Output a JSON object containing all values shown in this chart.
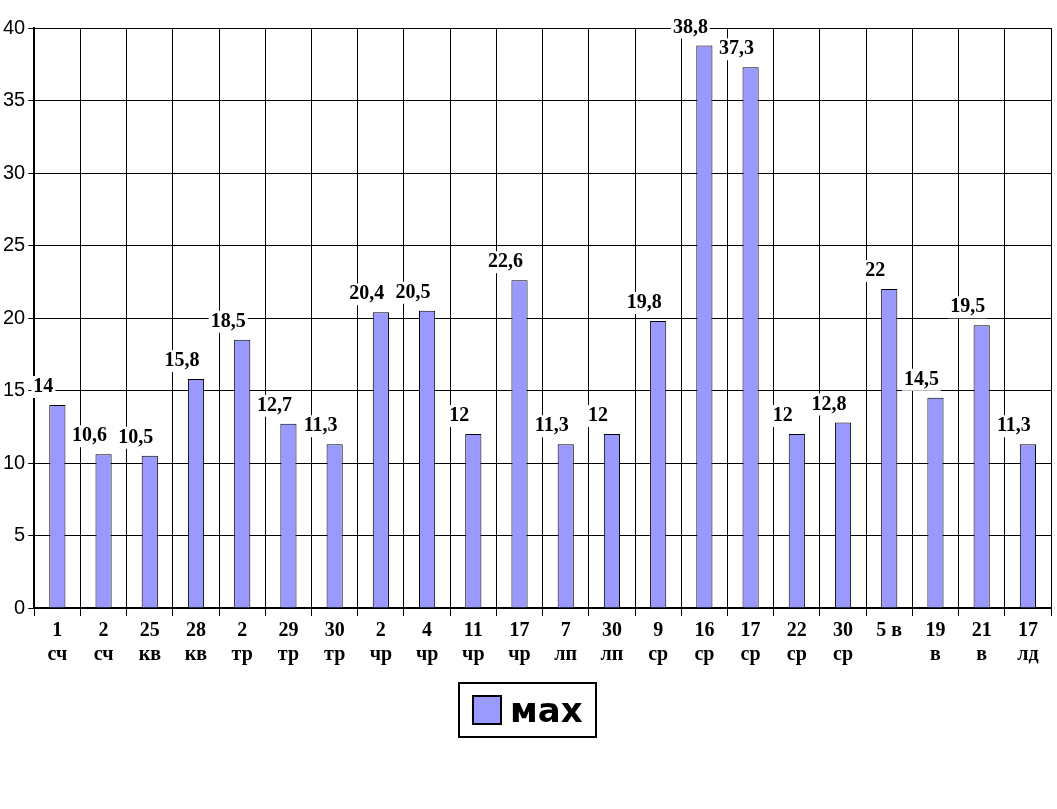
{
  "chart_data": {
    "type": "bar",
    "categories": [
      "1\nсч",
      "2\nсч",
      "25\nкв",
      "28\nкв",
      "2\nтр",
      "29\nтр",
      "30\nтр",
      "2\nчр",
      "4\nчр",
      "11\nчр",
      "17\nчр",
      "7\nлп",
      "30\nлп",
      "9\nср",
      "16\nср",
      "17\nср",
      "22\nср",
      "30\nср",
      "5 в",
      "19\nв",
      "21\nв",
      "17\nлд"
    ],
    "series": [
      {
        "name": "мах",
        "color": "#9999ff",
        "values": [
          14,
          10.6,
          10.5,
          15.8,
          18.5,
          12.7,
          11.3,
          20.4,
          20.5,
          12,
          22.6,
          11.3,
          12,
          19.8,
          38.8,
          37.3,
          12,
          12.8,
          22,
          14.5,
          19.5,
          11.3
        ],
        "value_labels": [
          "14",
          "10,6",
          "10,5",
          "15,8",
          "18,5",
          "12,7",
          "11,3",
          "20,4",
          "20,5",
          "12",
          "22,6",
          "11,3",
          "12",
          "19,8",
          "38,8",
          "37,3",
          "12",
          "12,8",
          "22",
          "14,5",
          "19,5",
          "11,3"
        ]
      }
    ],
    "ylim": [
      0,
      40
    ],
    "yticks": [
      0,
      5,
      10,
      15,
      20,
      25,
      30,
      35,
      40
    ],
    "grid": true,
    "legend": "bottom"
  }
}
